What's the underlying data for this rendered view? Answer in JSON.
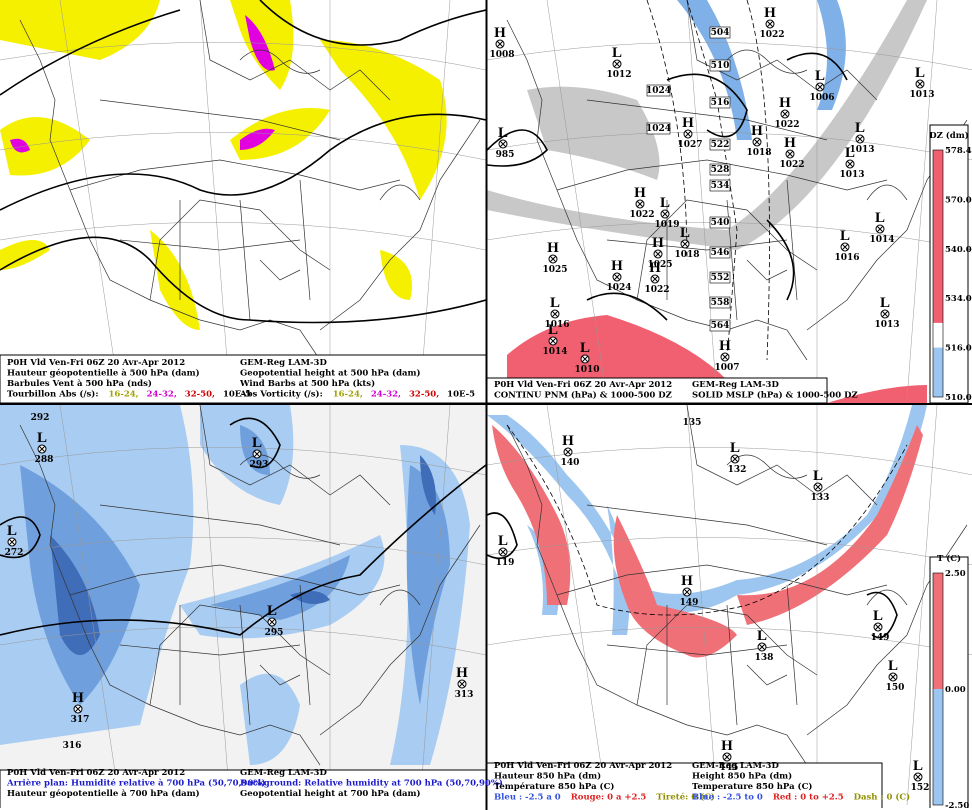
{
  "panels": [
    {
      "caption_left": [
        "P0H Vld Ven-Fri 06Z 20 Avr-Apr 2012",
        "Hauteur géopotentielle à 500 hPa (dam)",
        "Barbules Vent à 500 hPa (nds)",
        "Tourbillon Abs (/s):"
      ],
      "caption_right": [
        "GEM-Reg LAM-3D",
        "Geopotential height at 500 hPa (dam)",
        "Wind Barbs at 500 hPa (kts)",
        "Abs Vorticity (/s):"
      ],
      "legend": [
        {
          "text": "16-24,",
          "color": "#a0a000"
        },
        {
          "text": "24-32,",
          "color": "#d000d0"
        },
        {
          "text": "32-50,",
          "color": "#d00000"
        },
        {
          "text": "10E-5",
          "color": "#000000"
        }
      ],
      "centers": []
    },
    {
      "caption_left": [
        "P0H Vld Ven-Fri 06Z 20 Avr-Apr 2012",
        "CONTINU PNM (hPa) & 1000-500 DZ"
      ],
      "caption_right": [
        "GEM-Reg LAM-3D",
        "SOLID MSLP (hPa) & 1000-500 DZ"
      ],
      "colorbar": {
        "title": "DZ (dm)",
        "labels": [
          "578.46",
          "570.00",
          "540.00",
          "534.00",
          "516.00",
          "510.00"
        ]
      },
      "thickness_labels": [
        504,
        510,
        516,
        522,
        528,
        534,
        540,
        546,
        552,
        558,
        564
      ],
      "box_labels": [
        1024,
        1024
      ],
      "centers": [
        {
          "letter": "H",
          "value": 1008
        },
        {
          "letter": "L",
          "value": 1012
        },
        {
          "letter": "H",
          "value": 1022
        },
        {
          "letter": "L",
          "value": 1006
        },
        {
          "letter": "L",
          "value": 1013
        },
        {
          "letter": "L",
          "value": 985
        },
        {
          "letter": "H",
          "value": 1027
        },
        {
          "letter": "H",
          "value": 1018
        },
        {
          "letter": "H",
          "value": 1022
        },
        {
          "letter": "H",
          "value": 1022
        },
        {
          "letter": "L",
          "value": 1013
        },
        {
          "letter": "L",
          "value": 1013
        },
        {
          "letter": "H",
          "value": 1022
        },
        {
          "letter": "L",
          "value": 1019
        },
        {
          "letter": "L",
          "value": 1018
        },
        {
          "letter": "H",
          "value": 1025
        },
        {
          "letter": "H",
          "value": 1024
        },
        {
          "letter": "H",
          "value": 1022
        },
        {
          "letter": "H",
          "value": 1025
        },
        {
          "letter": "L",
          "value": 1014
        },
        {
          "letter": "L",
          "value": 1016
        },
        {
          "letter": "L",
          "value": 1013
        },
        {
          "letter": "L",
          "value": 1016
        },
        {
          "letter": "L",
          "value": 1014
        },
        {
          "letter": "L",
          "value": 1010
        },
        {
          "letter": "H",
          "value": 1007
        }
      ]
    },
    {
      "caption_left": [
        "P0H Vld Ven-Fri 06Z 20 Avr-Apr 2012",
        {
          "text": "Arrière plan: Humidité relative à 700 hPa (50,70,90%)",
          "color": "#1a1acc"
        },
        "Hauteur géopotentielle à 700 hPa (dam)"
      ],
      "caption_right": [
        "GEM-Reg LAM-3D",
        {
          "text": "Background: Relative humidity at 700 hPa (50,70,90%)",
          "color": "#1a1acc"
        },
        "Geopotential height at 700 hPa (dam)"
      ],
      "centers": [
        {
          "value": 292
        },
        {
          "letter": "L",
          "value": 288
        },
        {
          "letter": "L",
          "value": 293
        },
        {
          "letter": "L",
          "value": 272
        },
        {
          "letter": "L",
          "value": 295
        },
        {
          "letter": "H",
          "value": 313
        },
        {
          "letter": "H",
          "value": 317
        },
        {
          "value": 316
        }
      ]
    },
    {
      "caption_left": [
        "P0H Vld Ven-Fri 06Z 20 Avr-Apr 2012",
        "Hauteur 850 hPa (dm)",
        "Température 850 hPa (C)"
      ],
      "caption_right": [
        "GEM-Reg LAM-3D",
        "Height 850 hPa (dm)",
        "Temperature 850 hPa (C)"
      ],
      "legend_left": [
        {
          "text": "Bleu : -2.5 a 0",
          "color": "#3050e0"
        },
        {
          "text": "Rouge: 0 a +2.5",
          "color": "#e02020"
        },
        {
          "text": "Tireté: 0 (C)",
          "color": "#909000"
        }
      ],
      "legend_right": [
        {
          "text": "Blue : -2.5 to 0",
          "color": "#3050e0"
        },
        {
          "text": "Red : 0 to +2.5",
          "color": "#e02020"
        },
        {
          "text": "Dash : 0 (C)",
          "color": "#909000"
        }
      ],
      "colorbar": {
        "title": "T (C)",
        "labels": [
          "2.50",
          "0.00",
          "-2.50"
        ]
      },
      "centers": [
        {
          "value": 135
        },
        {
          "letter": "H",
          "value": 140
        },
        {
          "letter": "L",
          "value": 132
        },
        {
          "letter": "L",
          "value": 133
        },
        {
          "letter": "L",
          "value": 119
        },
        {
          "letter": "H",
          "value": 149
        },
        {
          "letter": "L",
          "value": 138
        },
        {
          "letter": "L",
          "value": 149
        },
        {
          "letter": "L",
          "value": 150
        },
        {
          "letter": "H",
          "value": 145
        },
        {
          "letter": "L",
          "value": 152
        }
      ]
    }
  ]
}
